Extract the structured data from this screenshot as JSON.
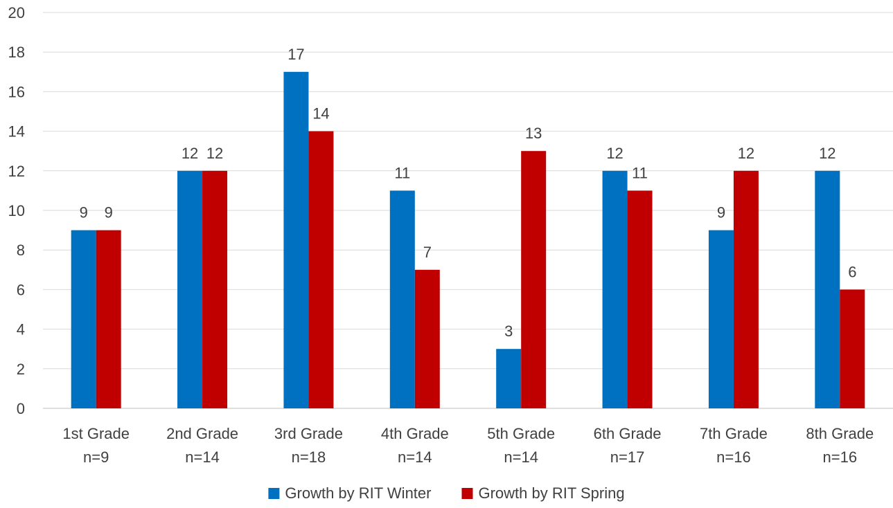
{
  "chart_data": {
    "type": "bar",
    "categories": [
      [
        "1st Grade",
        "n=9"
      ],
      [
        "2nd Grade",
        "n=14"
      ],
      [
        "3rd Grade",
        "n=18"
      ],
      [
        "4th Grade",
        "n=14"
      ],
      [
        "5th Grade",
        "n=14"
      ],
      [
        "6th Grade",
        "n=17"
      ],
      [
        "7th Grade",
        "n=16"
      ],
      [
        "8th Grade",
        "n=16"
      ]
    ],
    "series": [
      {
        "name": "Growth by RIT Winter",
        "color": "#0070C0",
        "values": [
          9,
          12,
          17,
          11,
          3,
          12,
          9,
          12
        ]
      },
      {
        "name": "Growth by RIT Spring",
        "color": "#C00000",
        "values": [
          9,
          12,
          14,
          7,
          13,
          11,
          12,
          6
        ]
      }
    ],
    "ylim": [
      0,
      20
    ],
    "yticks": [
      0,
      2,
      4,
      6,
      8,
      10,
      12,
      14,
      16,
      18,
      20
    ],
    "grid": true,
    "data_labels": true,
    "legend_position": "bottom"
  }
}
